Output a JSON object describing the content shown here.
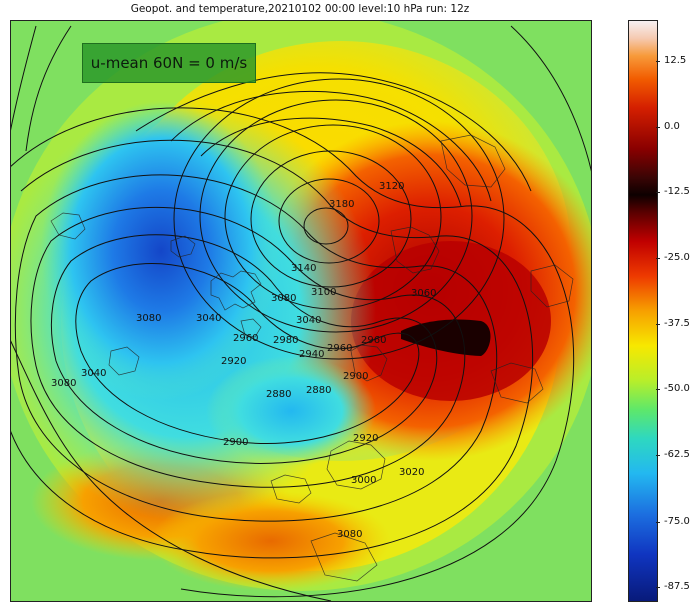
{
  "title": "Geopot. and temperature,20210102 00:00 level:10 hPa run: 12z",
  "annotation": "u-mean 60N = 0 m/s",
  "colorbar": {
    "ticks": [
      "12.5",
      "0.0",
      "-12.5",
      "-25.0",
      "-37.5",
      "-50.0",
      "-62.5",
      "-75.0",
      "-87.5"
    ]
  },
  "contour_labels": [
    "3120",
    "3180",
    "3140",
    "3100",
    "3080",
    "3060",
    "3040",
    "2980",
    "2960",
    "2960",
    "2940",
    "2920",
    "2960",
    "2880",
    "2880",
    "2900",
    "2900",
    "2920",
    "3000",
    "3020",
    "3080",
    "3040",
    "3080",
    "3080",
    "3040"
  ],
  "colors": {
    "cold": "#1c6fe0",
    "warm": "#d40000",
    "darkcore": "#1a0000",
    "background": "#7fe060"
  }
}
